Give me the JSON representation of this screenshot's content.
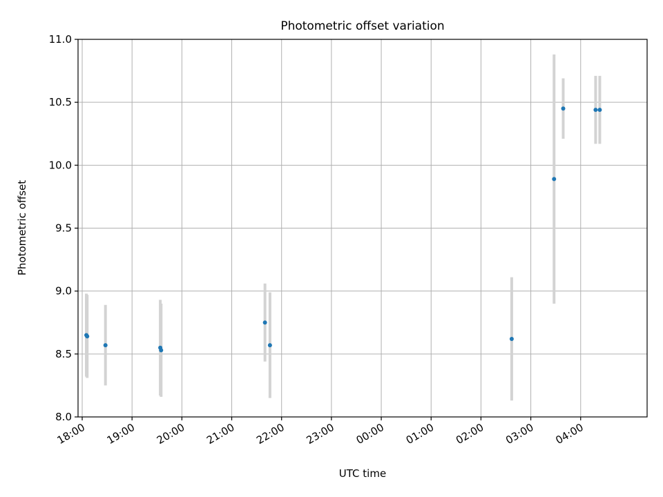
{
  "chart_data": {
    "type": "scatter",
    "title": "Photometric offset variation",
    "xlabel": "UTC time",
    "ylabel": "Photometric offset",
    "x_tick_labels": [
      "18:00",
      "19:00",
      "20:00",
      "21:00",
      "22:00",
      "23:00",
      "00:00",
      "01:00",
      "02:00",
      "03:00",
      "04:00"
    ],
    "y_tick_labels": [
      "8.0",
      "8.5",
      "9.0",
      "9.5",
      "10.0",
      "10.5",
      "11.0"
    ],
    "ylim": [
      8.0,
      11.0
    ],
    "xlim_hours_utc": [
      "17:55",
      "05:20"
    ],
    "grid": true,
    "marker_color": "#1f77b4",
    "errorbar_color": "#d3d3d3",
    "series": [
      {
        "points": [
          {
            "time": "18:05",
            "value": 8.65,
            "err": 0.33
          },
          {
            "time": "18:06",
            "value": 8.64,
            "err": 0.33
          },
          {
            "time": "18:28",
            "value": 8.57,
            "err": 0.32
          },
          {
            "time": "19:34",
            "value": 8.55,
            "err": 0.38
          },
          {
            "time": "19:35",
            "value": 8.53,
            "err": 0.37
          },
          {
            "time": "21:40",
            "value": 8.75,
            "err": 0.31
          },
          {
            "time": "21:46",
            "value": 8.57,
            "err": 0.42
          },
          {
            "time": "02:37",
            "value": 8.62,
            "err": 0.49
          },
          {
            "time": "03:28",
            "value": 9.89,
            "err": 0.99
          },
          {
            "time": "03:39",
            "value": 10.45,
            "err": 0.24
          },
          {
            "time": "04:18",
            "value": 10.44,
            "err": 0.27
          },
          {
            "time": "04:23",
            "value": 10.44,
            "err": 0.27
          }
        ]
      }
    ]
  }
}
